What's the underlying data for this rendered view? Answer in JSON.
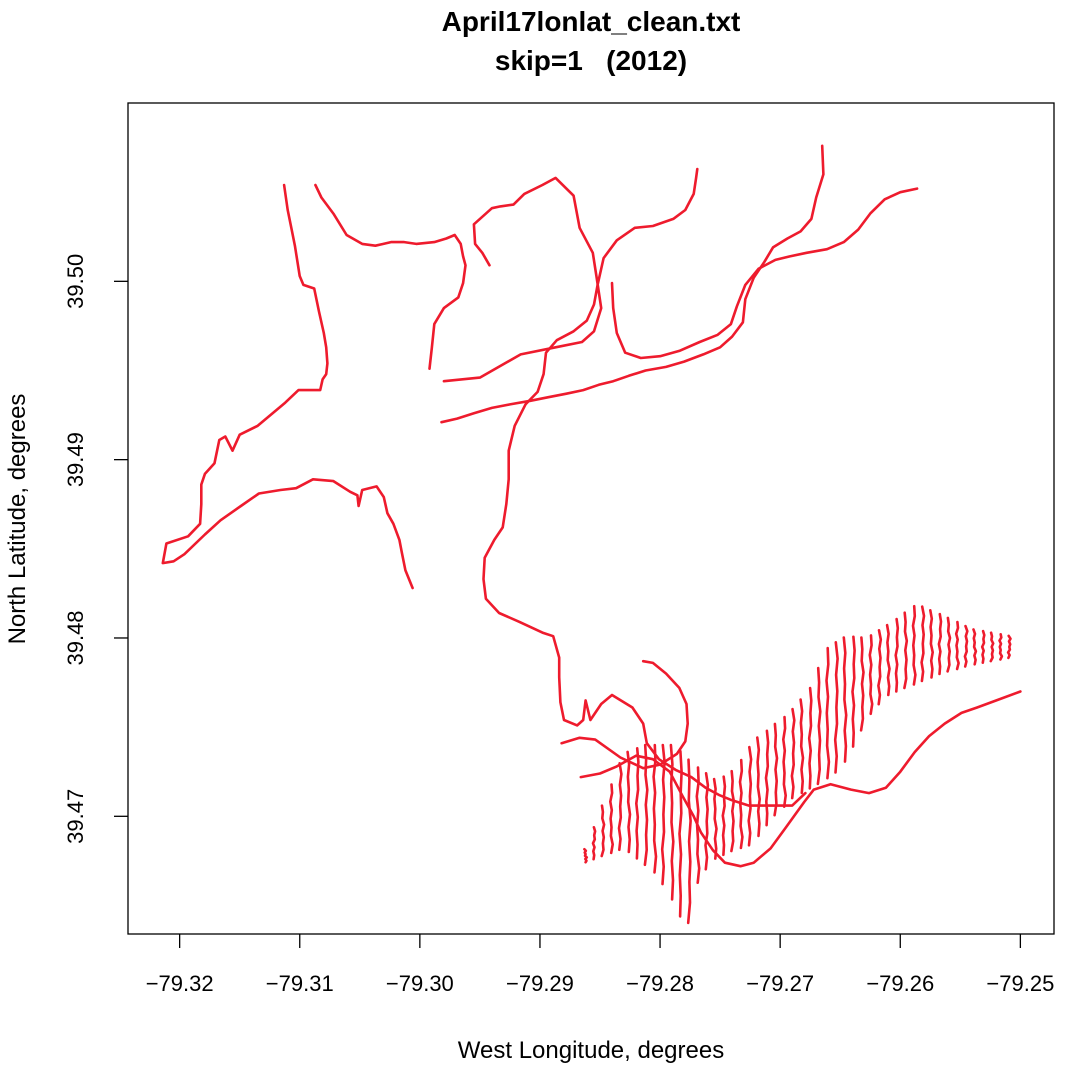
{
  "chart_data": {
    "type": "line",
    "title": "April17lonlat_clean.txt",
    "subtitle": "skip=1   (2012)",
    "xlabel": "West Longitude, degrees",
    "ylabel": "North Latitude, degrees",
    "xlim": [
      -79.3243,
      -79.2472
    ],
    "ylim": [
      39.4634,
      39.51
    ],
    "x_ticks": [
      -79.32,
      -79.31,
      -79.3,
      -79.29,
      -79.28,
      -79.27,
      -79.26,
      -79.25
    ],
    "x_tick_labels": [
      "−79.32",
      "−79.31",
      "−79.30",
      "−79.29",
      "−79.28",
      "−79.27",
      "−79.26",
      "−79.25"
    ],
    "y_ticks": [
      39.47,
      39.48,
      39.49,
      39.5
    ],
    "y_tick_labels": [
      "39.47",
      "39.48",
      "39.49",
      "39.50"
    ],
    "grid": false,
    "legend": "none",
    "colors": {
      "track": "#ee1b2d",
      "axes": "#000000"
    },
    "series": [
      {
        "points": [
          [
            -79.3113,
            39.5054
          ],
          [
            -79.311,
            39.504
          ],
          [
            -79.3107,
            39.503
          ],
          [
            -79.3104,
            39.502
          ],
          [
            -79.31,
            39.5003
          ],
          [
            -79.3097,
            39.4998
          ],
          [
            -79.3088,
            39.4996
          ],
          [
            -79.3084,
            39.4983
          ],
          [
            -79.308,
            39.4971
          ],
          [
            -79.3078,
            39.4963
          ],
          [
            -79.3077,
            39.4954
          ],
          [
            -79.3078,
            39.4948
          ],
          [
            -79.3081,
            39.4945
          ],
          [
            -79.3083,
            39.4939
          ],
          [
            -79.3088,
            39.4939
          ],
          [
            -79.3101,
            39.4939
          ],
          [
            -79.3112,
            39.4932
          ],
          [
            -79.3135,
            39.4919
          ],
          [
            -79.315,
            39.4914
          ],
          [
            -79.3156,
            39.4905
          ],
          [
            -79.3162,
            39.4913
          ],
          [
            -79.3167,
            39.4911
          ],
          [
            -79.3171,
            39.4898
          ],
          [
            -79.3179,
            39.4892
          ],
          [
            -79.3182,
            39.4886
          ],
          [
            -79.3182,
            39.4875
          ],
          [
            -79.3183,
            39.4864
          ],
          [
            -79.3193,
            39.4857
          ],
          [
            -79.3211,
            39.4853
          ],
          [
            -79.3214,
            39.4842
          ],
          [
            -79.3205,
            39.4843
          ],
          [
            -79.3196,
            39.4847
          ],
          [
            -79.3179,
            39.4858
          ],
          [
            -79.3166,
            39.4866
          ],
          [
            -79.3149,
            39.4874
          ],
          [
            -79.3134,
            39.4881
          ],
          [
            -79.3116,
            39.4883
          ],
          [
            -79.3103,
            39.4884
          ],
          [
            -79.3089,
            39.4889
          ],
          [
            -79.3072,
            39.4888
          ],
          [
            -79.3058,
            39.4882
          ],
          [
            -79.3052,
            39.488
          ],
          [
            -79.3051,
            39.4874
          ],
          [
            -79.3048,
            39.4883
          ],
          [
            -79.3036,
            39.4885
          ],
          [
            -79.303,
            39.4879
          ],
          [
            -79.3028,
            39.4873
          ],
          [
            -79.3027,
            39.487
          ],
          [
            -79.3022,
            39.4864
          ],
          [
            -79.3017,
            39.4855
          ],
          [
            -79.3015,
            39.4848
          ],
          [
            -79.3012,
            39.4838
          ],
          [
            -79.3006,
            39.4828
          ]
        ]
      },
      {
        "points": [
          [
            -79.3087,
            39.5054
          ],
          [
            -79.3082,
            39.5047
          ],
          [
            -79.3072,
            39.5038
          ],
          [
            -79.3061,
            39.5026
          ],
          [
            -79.3048,
            39.5021
          ],
          [
            -79.3037,
            39.502
          ],
          [
            -79.3024,
            39.5022
          ],
          [
            -79.3013,
            39.5022
          ],
          [
            -79.3003,
            39.5021
          ],
          [
            -79.2988,
            39.5022
          ],
          [
            -79.2978,
            39.5024
          ],
          [
            -79.2971,
            39.5026
          ],
          [
            -79.2966,
            39.5021
          ],
          [
            -79.2964,
            39.5014
          ],
          [
            -79.2962,
            39.5009
          ],
          [
            -79.2964,
            39.4999
          ],
          [
            -79.2968,
            39.4991
          ],
          [
            -79.298,
            39.4985
          ],
          [
            -79.2988,
            39.4976
          ],
          [
            -79.299,
            39.4963
          ],
          [
            -79.2992,
            39.4951
          ]
        ]
      },
      {
        "points": [
          [
            -79.298,
            39.4944
          ],
          [
            -79.295,
            39.4946
          ],
          [
            -79.2916,
            39.4959
          ],
          [
            -79.2887,
            39.4963
          ],
          [
            -79.2865,
            39.4966
          ],
          [
            -79.2855,
            39.4972
          ],
          [
            -79.2849,
            39.4985
          ],
          [
            -79.2853,
            39.5003
          ],
          [
            -79.2856,
            39.5016
          ],
          [
            -79.2867,
            39.503
          ],
          [
            -79.2872,
            39.5048
          ],
          [
            -79.2887,
            39.5058
          ],
          [
            -79.2898,
            39.5054
          ],
          [
            -79.2913,
            39.5049
          ],
          [
            -79.2922,
            39.5043
          ],
          [
            -79.2933,
            39.5042
          ],
          [
            -79.294,
            39.5041
          ],
          [
            -79.2955,
            39.5032
          ],
          [
            -79.2954,
            39.5021
          ],
          [
            -79.2948,
            39.5016
          ],
          [
            -79.2942,
            39.5009
          ]
        ]
      },
      {
        "points": [
          [
            -79.2769,
            39.5063
          ],
          [
            -79.277,
            39.5058
          ],
          [
            -79.2772,
            39.5049
          ],
          [
            -79.2779,
            39.504
          ],
          [
            -79.2789,
            39.5035
          ],
          [
            -79.2806,
            39.5031
          ],
          [
            -79.2821,
            39.503
          ],
          [
            -79.2836,
            39.5023
          ],
          [
            -79.2847,
            39.5013
          ],
          [
            -79.2852,
            39.4998
          ],
          [
            -79.2855,
            39.4987
          ],
          [
            -79.2861,
            39.4978
          ],
          [
            -79.2872,
            39.4972
          ],
          [
            -79.2886,
            39.4967
          ],
          [
            -79.2895,
            39.496
          ],
          [
            -79.2897,
            39.4948
          ],
          [
            -79.2902,
            39.4938
          ],
          [
            -79.2912,
            39.4931
          ],
          [
            -79.2921,
            39.4919
          ],
          [
            -79.2926,
            39.4905
          ],
          [
            -79.2926,
            39.4889
          ],
          [
            -79.2928,
            39.4875
          ],
          [
            -79.2931,
            39.4862
          ],
          [
            -79.2938,
            39.4855
          ],
          [
            -79.2946,
            39.4845
          ],
          [
            -79.2947,
            39.4833
          ],
          [
            -79.2945,
            39.4822
          ],
          [
            -79.2934,
            39.4814
          ],
          [
            -79.2917,
            39.4809
          ],
          [
            -79.2898,
            39.4803
          ],
          [
            -79.2889,
            39.4801
          ],
          [
            -79.2884,
            39.4789
          ],
          [
            -79.2884,
            39.4778
          ],
          [
            -79.2883,
            39.4764
          ],
          [
            -79.288,
            39.4754
          ],
          [
            -79.2869,
            39.4751
          ],
          [
            -79.2864,
            39.4754
          ],
          [
            -79.2862,
            39.4765
          ],
          [
            -79.2858,
            39.4754
          ],
          [
            -79.2849,
            39.4763
          ],
          [
            -79.284,
            39.4768
          ],
          [
            -79.2823,
            39.4761
          ],
          [
            -79.2814,
            39.4752
          ],
          [
            -79.2811,
            39.4741
          ],
          [
            -79.2801,
            39.4732
          ],
          [
            -79.2787,
            39.4726
          ],
          [
            -79.2774,
            39.4722
          ],
          [
            -79.2762,
            39.4716
          ],
          [
            -79.2751,
            39.4712
          ],
          [
            -79.274,
            39.4709
          ],
          [
            -79.2726,
            39.4706
          ],
          [
            -79.2706,
            39.4706
          ],
          [
            -79.269,
            39.4706
          ],
          [
            -79.2679,
            39.4713
          ]
        ]
      },
      {
        "points": [
          [
            -79.2665,
            39.5076
          ],
          [
            -79.2664,
            39.506
          ],
          [
            -79.267,
            39.5047
          ],
          [
            -79.2674,
            39.5035
          ],
          [
            -79.2683,
            39.5028
          ],
          [
            -79.2694,
            39.5024
          ],
          [
            -79.2706,
            39.5019
          ],
          [
            -79.2713,
            39.5011
          ],
          [
            -79.2722,
            39.5002
          ],
          [
            -79.2729,
            39.499
          ],
          [
            -79.2731,
            39.4977
          ],
          [
            -79.274,
            39.4969
          ],
          [
            -79.275,
            39.4963
          ],
          [
            -79.2764,
            39.4959
          ],
          [
            -79.278,
            39.4955
          ],
          [
            -79.2795,
            39.4952
          ],
          [
            -79.2812,
            39.495
          ],
          [
            -79.2826,
            39.4947
          ],
          [
            -79.2839,
            39.4944
          ],
          [
            -79.2851,
            39.4942
          ],
          [
            -79.2864,
            39.4939
          ],
          [
            -79.2878,
            39.4937
          ],
          [
            -79.2893,
            39.4935
          ],
          [
            -79.2908,
            39.4933
          ],
          [
            -79.2925,
            39.4931
          ],
          [
            -79.294,
            39.4929
          ],
          [
            -79.2955,
            39.4926
          ],
          [
            -79.2969,
            39.4923
          ],
          [
            -79.2982,
            39.4921
          ]
        ]
      },
      {
        "points": [
          [
            -79.2586,
            39.5052
          ],
          [
            -79.26,
            39.505
          ],
          [
            -79.2613,
            39.5046
          ],
          [
            -79.2625,
            39.5038
          ],
          [
            -79.2635,
            39.5029
          ],
          [
            -79.2647,
            39.5022
          ],
          [
            -79.2661,
            39.5018
          ],
          [
            -79.2678,
            39.5016
          ],
          [
            -79.2692,
            39.5014
          ],
          [
            -79.2704,
            39.5012
          ],
          [
            -79.2718,
            39.5007
          ],
          [
            -79.2729,
            39.4998
          ],
          [
            -79.2736,
            39.4986
          ],
          [
            -79.2741,
            39.4976
          ],
          [
            -79.2752,
            39.497
          ],
          [
            -79.2767,
            39.4966
          ],
          [
            -79.2784,
            39.4961
          ],
          [
            -79.28,
            39.4958
          ],
          [
            -79.2816,
            39.4957
          ],
          [
            -79.2829,
            39.496
          ],
          [
            -79.2836,
            39.4971
          ],
          [
            -79.2839,
            39.4985
          ],
          [
            -79.284,
            39.4999
          ]
        ]
      },
      {
        "points": [
          [
            -79.2814,
            39.4787
          ],
          [
            -79.2806,
            39.4786
          ],
          [
            -79.2795,
            39.478
          ],
          [
            -79.2784,
            39.4772
          ],
          [
            -79.2778,
            39.4763
          ],
          [
            -79.2777,
            39.4752
          ],
          [
            -79.2779,
            39.4742
          ],
          [
            -79.2786,
            39.4735
          ],
          [
            -79.28,
            39.4729
          ],
          [
            -79.2814,
            39.4727
          ],
          [
            -79.2833,
            39.4733
          ],
          [
            -79.2854,
            39.4743
          ],
          [
            -79.2867,
            39.4744
          ],
          [
            -79.2882,
            39.4741
          ]
        ]
      },
      {
        "points": [
          [
            -79.2866,
            39.4722
          ],
          [
            -79.285,
            39.4724
          ],
          [
            -79.2836,
            39.4728
          ],
          [
            -79.282,
            39.4734
          ],
          [
            -79.2806,
            39.4732
          ],
          [
            -79.2792,
            39.4725
          ],
          [
            -79.2781,
            39.4711
          ],
          [
            -79.2772,
            39.47
          ],
          [
            -79.2766,
            39.4691
          ],
          [
            -79.2756,
            39.4681
          ],
          [
            -79.2746,
            39.4674
          ],
          [
            -79.2733,
            39.4672
          ],
          [
            -79.2722,
            39.4674
          ],
          [
            -79.2708,
            39.4682
          ],
          [
            -79.2695,
            39.4694
          ],
          [
            -79.268,
            39.4708
          ],
          [
            -79.2672,
            39.4715
          ],
          [
            -79.2658,
            39.4718
          ],
          [
            -79.2641,
            39.4715
          ],
          [
            -79.2626,
            39.4713
          ],
          [
            -79.2612,
            39.4716
          ],
          [
            -79.26,
            39.4725
          ],
          [
            -79.2588,
            39.4736
          ],
          [
            -79.2576,
            39.4745
          ],
          [
            -79.2563,
            39.4752
          ],
          [
            -79.2549,
            39.4758
          ],
          [
            -79.2536,
            39.4761
          ],
          [
            -79.252,
            39.4765
          ],
          [
            -79.25,
            39.477
          ]
        ]
      }
    ]
  }
}
